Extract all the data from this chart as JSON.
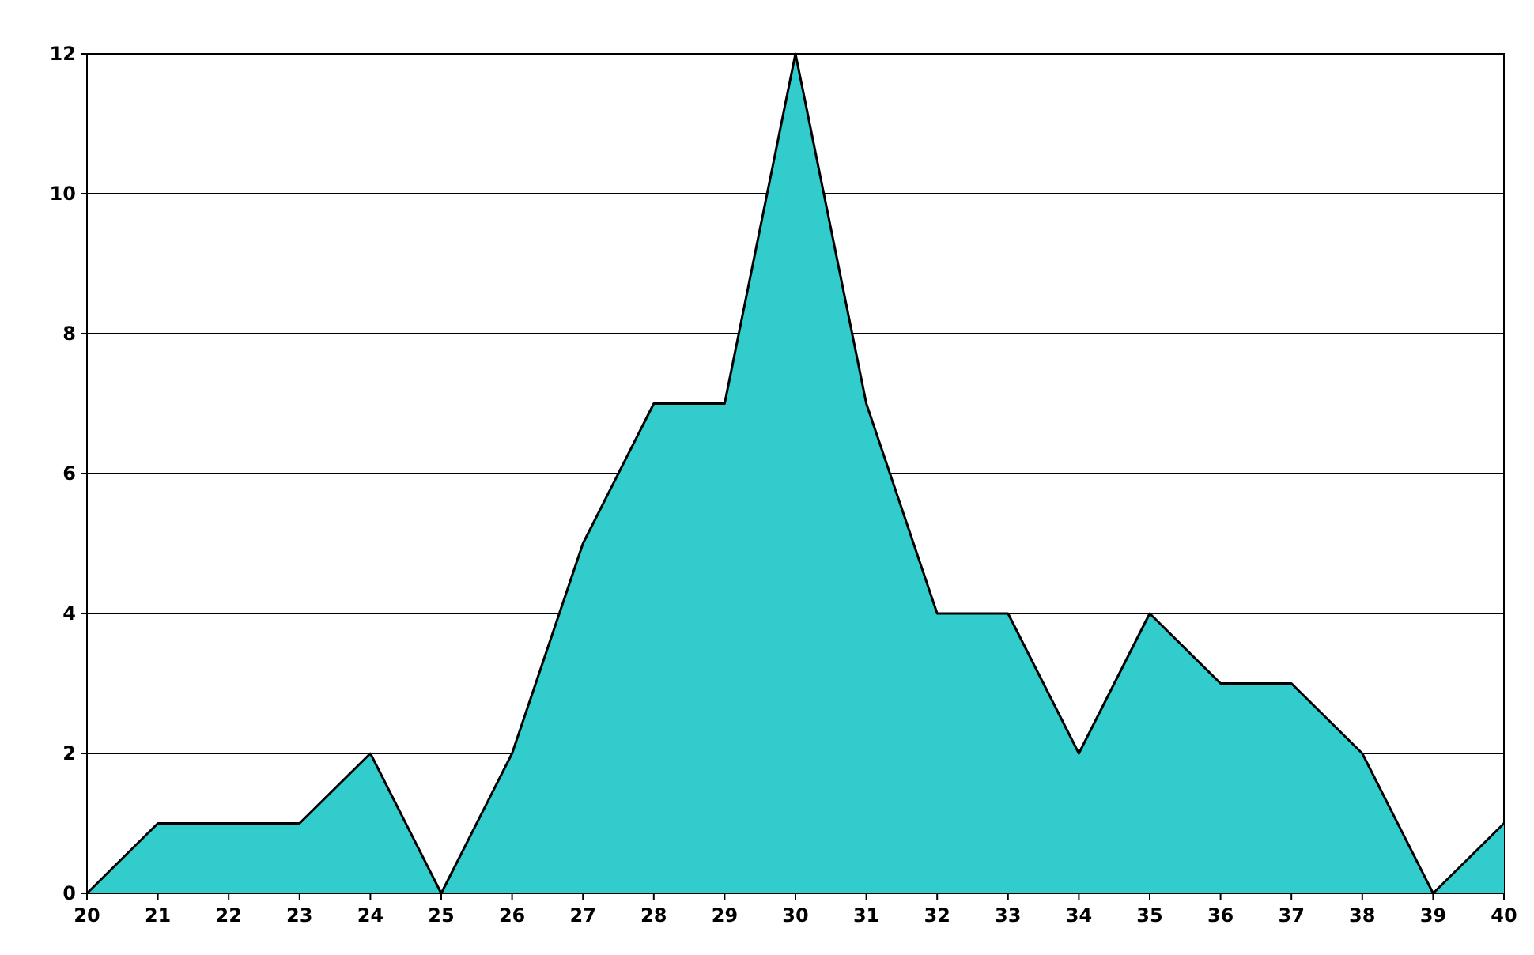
{
  "chart_data": {
    "type": "area",
    "x": [
      20,
      21,
      22,
      23,
      24,
      25,
      26,
      27,
      28,
      29,
      30,
      31,
      32,
      33,
      34,
      35,
      36,
      37,
      38,
      39,
      40
    ],
    "values": [
      0,
      1,
      1,
      1,
      2,
      0,
      2,
      5,
      7,
      7,
      12,
      7,
      4,
      4,
      2,
      4,
      3,
      3,
      2,
      0,
      1
    ],
    "color": "#33cccc",
    "xlim": [
      20,
      40
    ],
    "xticks": [
      20,
      21,
      22,
      23,
      24,
      25,
      26,
      27,
      28,
      29,
      30,
      31,
      32,
      33,
      34,
      35,
      36,
      37,
      38,
      39,
      40
    ],
    "ylim": [
      0,
      12
    ],
    "yticks": [
      0,
      2,
      4,
      6,
      8,
      10,
      12
    ],
    "grid": "y"
  }
}
